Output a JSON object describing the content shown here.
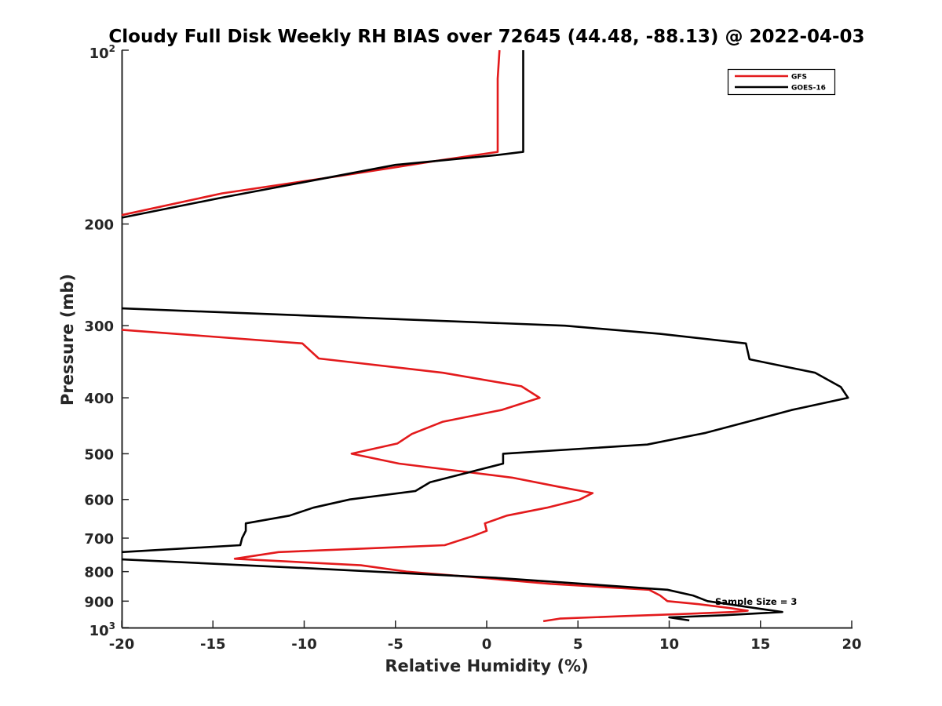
{
  "chart_data": {
    "type": "line",
    "title": "Cloudy Full Disk Weekly RH BIAS over 72645 (44.48, -88.13) @ 2022-04-03",
    "xlabel": "Relative Humidity (%)",
    "ylabel": "Pressure (mb)",
    "xlim": [
      -20,
      20
    ],
    "ylim": [
      100,
      1000
    ],
    "yscale": "log",
    "yreversed": true,
    "grid": false,
    "x_ticks": [
      "-20",
      "-15",
      "-10",
      "-5",
      "0",
      "5",
      "10",
      "15",
      "20"
    ],
    "y_ticks": [
      {
        "value": 100,
        "base": "10",
        "exp": "2"
      },
      {
        "value": 200,
        "label": "200"
      },
      {
        "value": 300,
        "label": "300"
      },
      {
        "value": 400,
        "label": "400"
      },
      {
        "value": 500,
        "label": "500"
      },
      {
        "value": 600,
        "label": "600"
      },
      {
        "value": 700,
        "label": "700"
      },
      {
        "value": 800,
        "label": "800"
      },
      {
        "value": 900,
        "label": "900"
      },
      {
        "value": 1000,
        "base": "10",
        "exp": "3"
      }
    ],
    "legend": {
      "position": "top-right"
    },
    "annotation": "Sample Size = 3",
    "series": [
      {
        "name": "GFS",
        "color": "#e31a1c",
        "points": [
          [
            0.7,
            100
          ],
          [
            0.6,
            112
          ],
          [
            0.6,
            125
          ],
          [
            0.6,
            150
          ],
          [
            -2.5,
            155
          ],
          [
            -8,
            165
          ],
          [
            -14.5,
            177
          ],
          [
            -20,
            193
          ],
          null,
          [
            -20,
            305
          ],
          [
            -10.1,
            322
          ],
          [
            -9.2,
            342
          ],
          [
            -2.4,
            362
          ],
          [
            1.9,
            382
          ],
          [
            2.9,
            400
          ],
          [
            0.8,
            420
          ],
          [
            -2.4,
            440
          ],
          [
            -4.1,
            462
          ],
          [
            -4.9,
            480
          ],
          [
            -7.4,
            500
          ],
          [
            -4.8,
            520
          ],
          [
            1.4,
            550
          ],
          [
            3.9,
            570
          ],
          [
            5.8,
            585
          ],
          [
            5.1,
            600
          ],
          [
            3.3,
            620
          ],
          [
            1.1,
            640
          ],
          [
            -0.1,
            660
          ],
          [
            0.0,
            680
          ],
          [
            -0.8,
            695
          ],
          [
            -2.3,
            720
          ],
          [
            -11.4,
            740
          ],
          [
            -13.8,
            760
          ],
          [
            -6.9,
            780
          ],
          [
            -4.4,
            800
          ],
          [
            -0.3,
            820
          ],
          [
            3.5,
            840
          ],
          [
            8.9,
            860
          ],
          [
            9.5,
            880
          ],
          [
            9.9,
            900
          ],
          [
            11.5,
            910
          ],
          [
            13.3,
            925
          ],
          [
            14.3,
            935
          ],
          [
            13.5,
            940
          ],
          [
            10.5,
            948
          ],
          [
            7.6,
            955
          ],
          [
            4.0,
            965
          ],
          [
            3.1,
            975
          ]
        ]
      },
      {
        "name": "GOES-16",
        "color": "#000000",
        "points": [
          [
            2.0,
            100
          ],
          [
            2.0,
            120
          ],
          [
            2.0,
            150
          ],
          [
            0.5,
            152
          ],
          [
            -5,
            158
          ],
          [
            -14.5,
            180
          ],
          [
            -20,
            195
          ],
          null,
          [
            -20,
            280
          ],
          [
            4.3,
            300
          ],
          [
            9.5,
            310
          ],
          [
            14.2,
            322
          ],
          [
            14.4,
            343
          ],
          [
            18.0,
            362
          ],
          [
            19.4,
            383
          ],
          [
            19.8,
            400
          ],
          [
            16.7,
            420
          ],
          [
            14.3,
            440
          ],
          [
            12.0,
            460
          ],
          [
            8.8,
            482
          ],
          [
            0.9,
            500
          ],
          [
            0.9,
            520
          ],
          [
            -3.1,
            560
          ],
          [
            -3.9,
            580
          ],
          [
            -7.5,
            600
          ],
          [
            -9.5,
            620
          ],
          [
            -10.8,
            640
          ],
          [
            -13.2,
            660
          ],
          [
            -13.2,
            680
          ],
          [
            -13.4,
            700
          ],
          [
            -13.5,
            720
          ],
          [
            -20,
            740
          ],
          null,
          [
            -20,
            762
          ],
          [
            -9.5,
            790
          ],
          [
            0.5,
            820
          ],
          [
            9.9,
            860
          ],
          [
            11.3,
            880
          ],
          [
            12.1,
            900
          ],
          [
            16.2,
            940
          ],
          [
            13.0,
            952
          ],
          [
            10.0,
            960
          ],
          [
            11.1,
            972
          ]
        ]
      }
    ]
  }
}
